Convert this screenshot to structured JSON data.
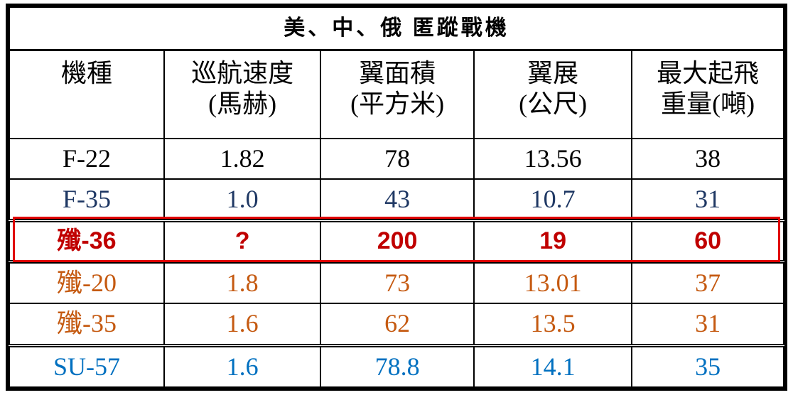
{
  "table": {
    "title": "美、中、俄 匿蹤戰機",
    "header": [
      "機種",
      "巡航速度\n(馬赫)",
      "翼面積\n(平方米)",
      "翼展\n(公尺)",
      "最大起飛\n重量(噸)"
    ],
    "rows": [
      {
        "cells": [
          "F-22",
          "1.82",
          "78",
          "13.56",
          "38"
        ],
        "color": "#000000"
      },
      {
        "cells": [
          "F-35",
          "1.0",
          "43",
          "10.7",
          "31"
        ],
        "color": "#1f3864"
      },
      {
        "cells": [
          "殲-36",
          "?",
          "200",
          "19",
          "60"
        ],
        "color": "#c00000",
        "highlight": true
      },
      {
        "cells": [
          "殲-20",
          "1.8",
          "73",
          "13.01",
          "37"
        ],
        "color": "#c55a11"
      },
      {
        "cells": [
          "殲-35",
          "1.6",
          "62",
          "13.5",
          "31"
        ],
        "color": "#c55a11"
      },
      {
        "cells": [
          "SU-57",
          "1.6",
          "78.8",
          "14.1",
          "35"
        ],
        "color": "#0070c0"
      }
    ]
  }
}
